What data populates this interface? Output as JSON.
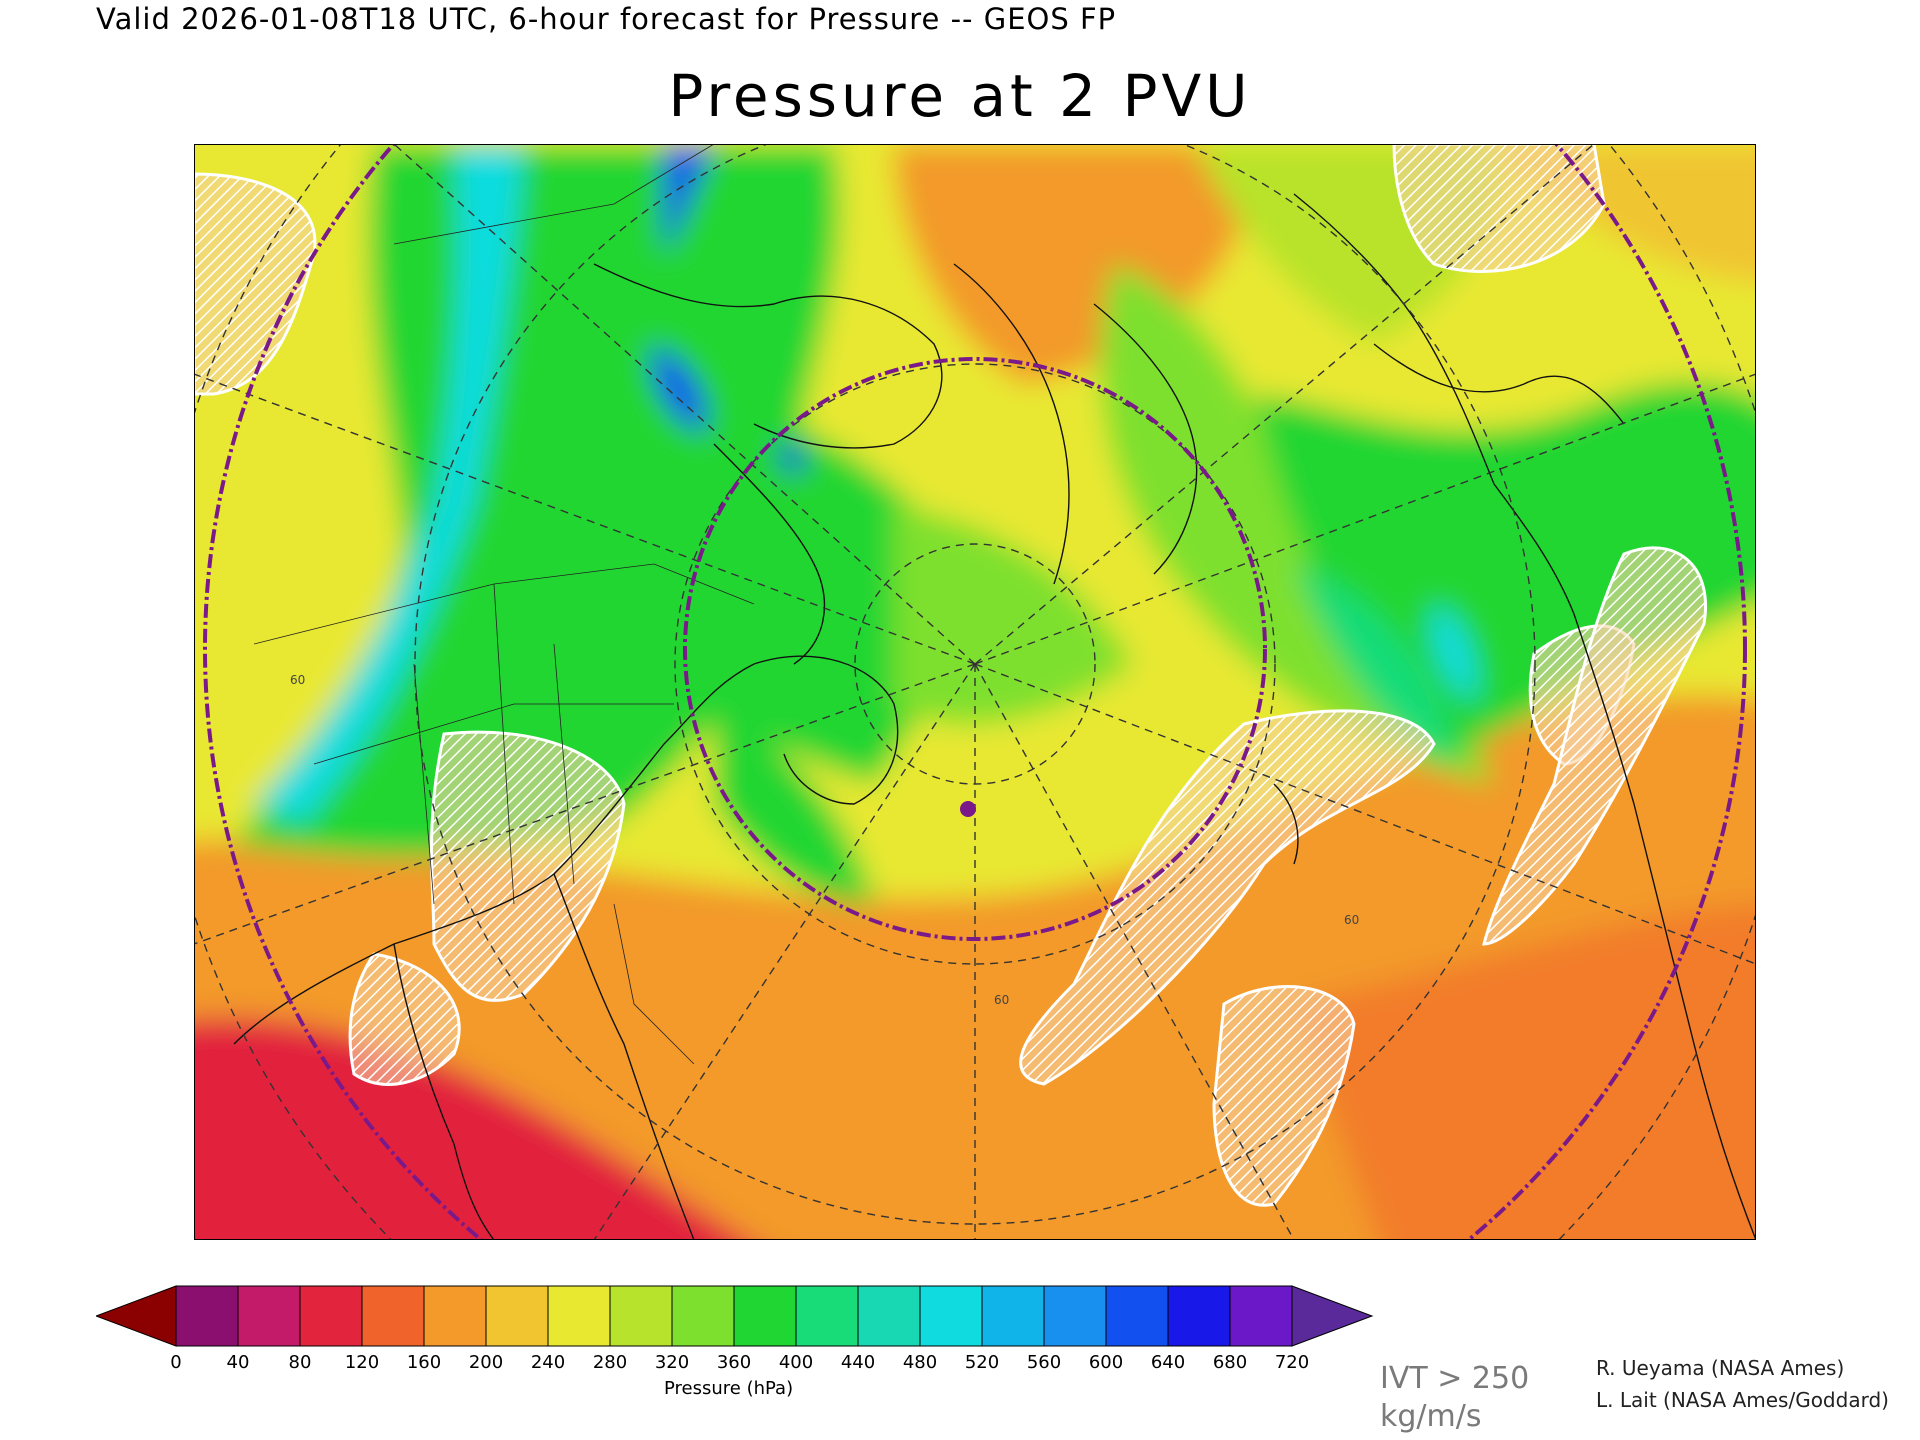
{
  "header": {
    "valid_text": "Valid 2026-01-08T18 UTC, 6-hour forecast for Pressure -- GEOS FP"
  },
  "title": "Pressure at 2 PVU",
  "colorbar": {
    "label": "Pressure (hPa)",
    "ticks": [
      "0",
      "40",
      "80",
      "120",
      "160",
      "200",
      "240",
      "280",
      "320",
      "360",
      "400",
      "440",
      "480",
      "520",
      "560",
      "600",
      "640",
      "680",
      "720"
    ],
    "under_color": "#8b0000",
    "over_color": "#5a2a9a",
    "colors": [
      "#8a0f6e",
      "#c41a6a",
      "#e2243c",
      "#f0632a",
      "#f39a2a",
      "#f0c530",
      "#e8e830",
      "#b8e32c",
      "#7ee02e",
      "#20d632",
      "#18dc78",
      "#18d8b4",
      "#10dce0",
      "#10b4e8",
      "#1890f0",
      "#1250f0",
      "#1818e8",
      "#6a18c8"
    ]
  },
  "map": {
    "layers": [
      "pressure-field",
      "coastlines",
      "borders",
      "graticule",
      "range-rings",
      "ivt-hatching",
      "marker"
    ],
    "graticule_labels": [
      "60",
      "60",
      "60"
    ],
    "ring_color": "#7a1a8a",
    "hatch_color": "#ffffff"
  },
  "legend_ivt": {
    "line1": "IVT > 250",
    "line2": "kg/m/s"
  },
  "credits": {
    "line1": "R. Ueyama (NASA Ames)",
    "line2": "L. Lait (NASA Ames/Goddard)"
  }
}
